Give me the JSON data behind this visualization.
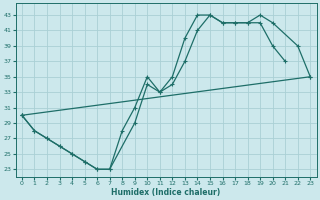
{
  "xlabel": "Humidex (Indice chaleur)",
  "bg_color": "#cce8ec",
  "grid_color": "#aad0d5",
  "line_color": "#1e6e68",
  "xlim": [
    -0.5,
    23.5
  ],
  "ylim": [
    22,
    44.5
  ],
  "xticks": [
    0,
    1,
    2,
    3,
    4,
    5,
    6,
    7,
    8,
    9,
    10,
    11,
    12,
    13,
    14,
    15,
    16,
    17,
    18,
    19,
    20,
    21,
    22,
    23
  ],
  "yticks": [
    23,
    25,
    27,
    29,
    31,
    33,
    35,
    37,
    39,
    41,
    43
  ],
  "series1_x": [
    0,
    1,
    2,
    3,
    4,
    5,
    6,
    7,
    8,
    9,
    10,
    11,
    12,
    13,
    14,
    15,
    16,
    17,
    18,
    19,
    20,
    21
  ],
  "series1_y": [
    30,
    28,
    27,
    26,
    25,
    24,
    23,
    23,
    28,
    31,
    35,
    33,
    35,
    40,
    43,
    43,
    42,
    42,
    42,
    42,
    39,
    37
  ],
  "series2_x": [
    0,
    1,
    2,
    3,
    4,
    5,
    6,
    7,
    9,
    10,
    11,
    12,
    13,
    14,
    15,
    16,
    17,
    18,
    19,
    20,
    22,
    23
  ],
  "series2_y": [
    30,
    28,
    27,
    26,
    25,
    24,
    23,
    23,
    29,
    34,
    33,
    34,
    37,
    41,
    43,
    42,
    42,
    42,
    43,
    42,
    39,
    35
  ],
  "series3_x": [
    0,
    23
  ],
  "series3_y": [
    30,
    35
  ]
}
